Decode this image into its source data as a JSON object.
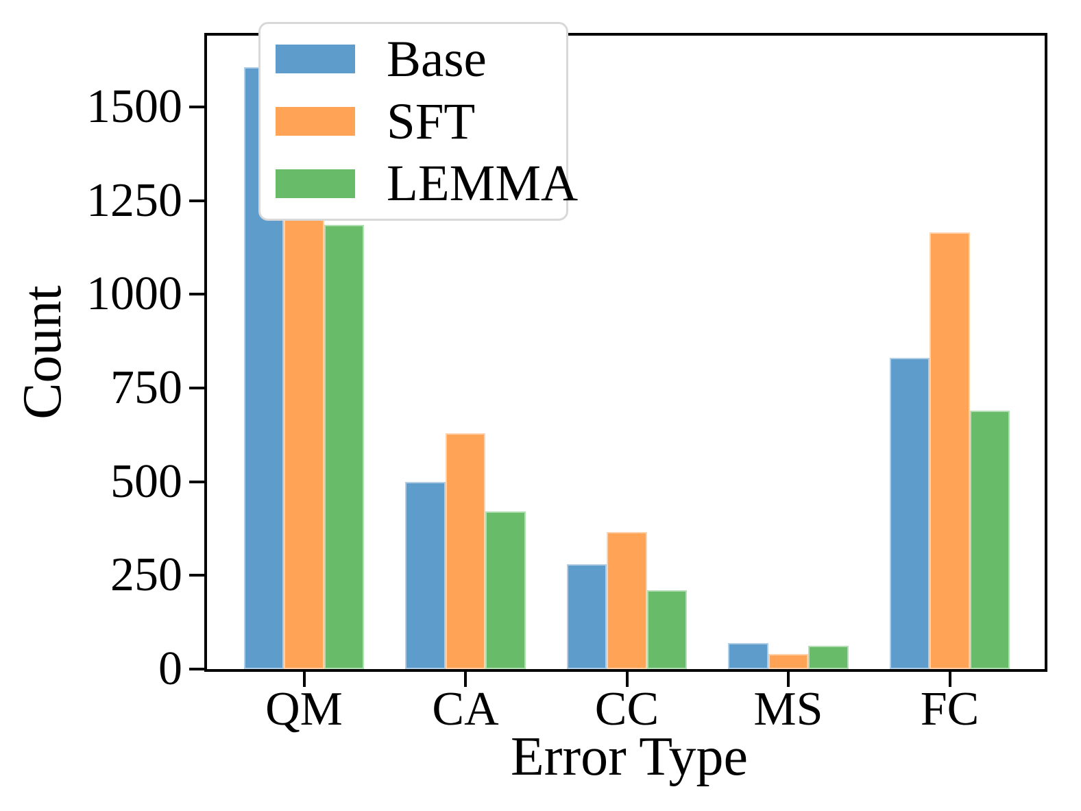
{
  "chart_data": {
    "type": "bar",
    "title": "",
    "xlabel": "Error Type",
    "ylabel": "Count",
    "categories": [
      "QM",
      "CA",
      "CC",
      "MS",
      "FC"
    ],
    "series": [
      {
        "name": "Base",
        "color": "#5E9DCB",
        "values": [
          1605,
          500,
          280,
          70,
          830
        ]
      },
      {
        "name": "SFT",
        "color": "#FFA457",
        "values": [
          1590,
          630,
          365,
          40,
          1165
        ]
      },
      {
        "name": "LEMMA",
        "color": "#68BC69",
        "values": [
          1185,
          420,
          210,
          63,
          690
        ]
      }
    ],
    "ylim": [
      0,
      1690
    ],
    "yticks": [
      0,
      250,
      500,
      750,
      1000,
      1250,
      1500
    ],
    "grid": false,
    "legend_position": "upper center",
    "axis_color": "#000000",
    "legend_border_color": "#d8d8d8",
    "background_color": "#ffffff"
  }
}
